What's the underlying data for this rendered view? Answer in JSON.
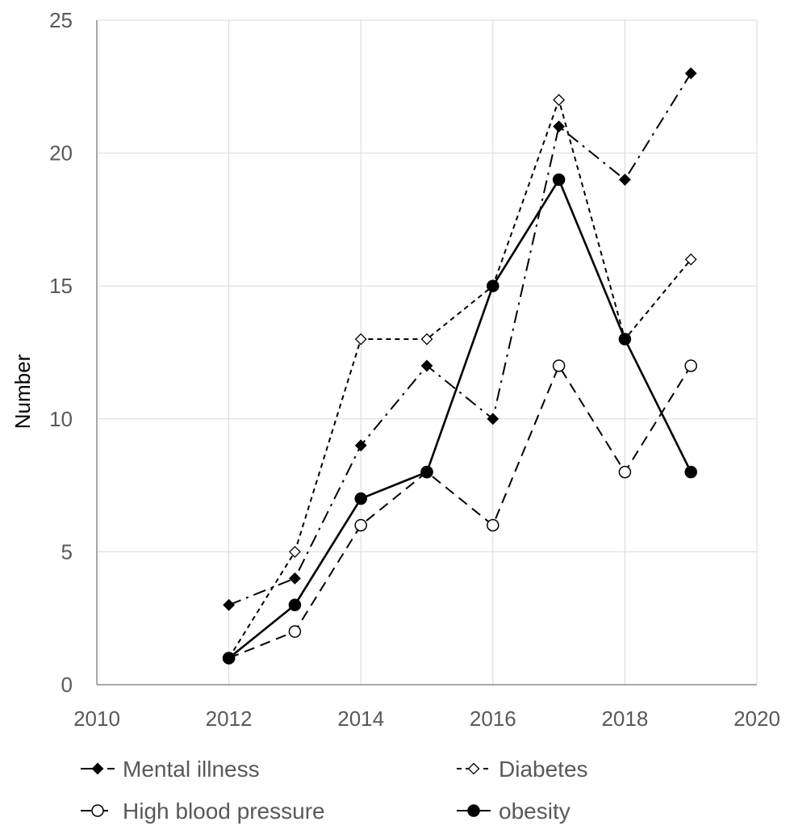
{
  "chart_data": {
    "type": "line",
    "title": "",
    "xlabel": "",
    "ylabel": "Number",
    "xlim": [
      2010,
      2020
    ],
    "ylim": [
      0,
      25
    ],
    "xticks": [
      2010,
      2012,
      2014,
      2016,
      2018,
      2020
    ],
    "yticks": [
      0,
      5,
      10,
      15,
      20,
      25
    ],
    "grid": true,
    "legend_position": "bottom",
    "x": [
      2012,
      2013,
      2014,
      2015,
      2016,
      2017,
      2018,
      2019
    ],
    "series": [
      {
        "name": "Mental illness",
        "values": [
          3,
          4,
          9,
          12,
          10,
          21,
          19,
          23
        ],
        "marker": "filled-diamond",
        "dash": "dash-dot",
        "color": "#000000"
      },
      {
        "name": "Diabetes",
        "values": [
          1,
          5,
          13,
          13,
          15,
          22,
          13,
          16
        ],
        "marker": "open-diamond",
        "dash": "short-dash",
        "color": "#000000"
      },
      {
        "name": "High blood pressure",
        "values": [
          1,
          2,
          6,
          8,
          6,
          12,
          8,
          12
        ],
        "marker": "open-circle",
        "dash": "long-dash",
        "color": "#000000"
      },
      {
        "name": "obesity",
        "values": [
          1,
          3,
          7,
          8,
          15,
          19,
          13,
          8
        ],
        "marker": "filled-circle",
        "dash": "solid",
        "color": "#000000"
      }
    ]
  }
}
